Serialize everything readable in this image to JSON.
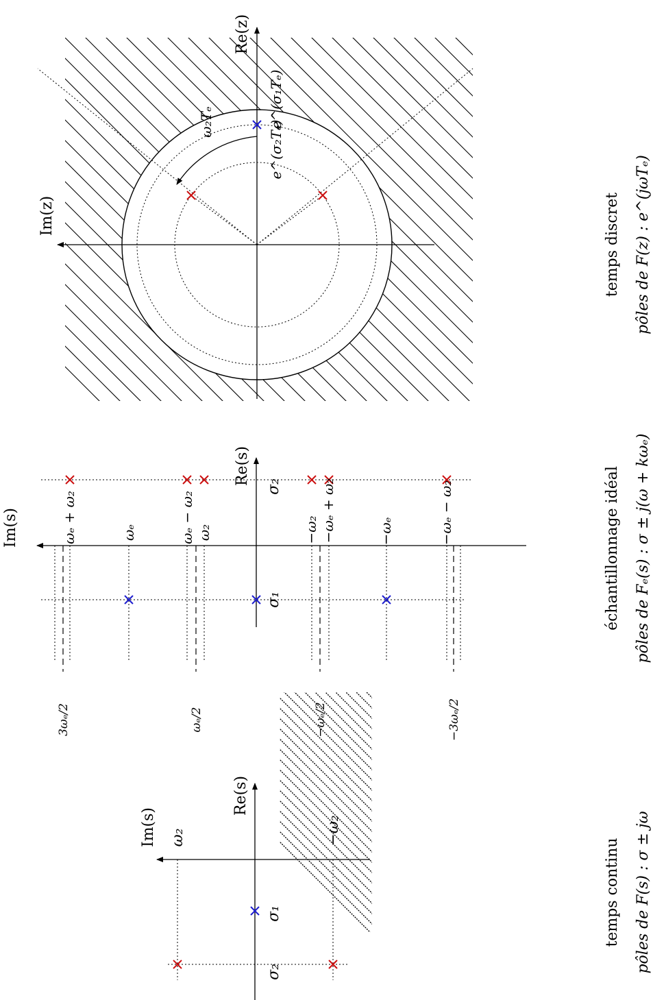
{
  "colors": {
    "stable_pole": "#1f1fd0",
    "unstable_pole": "#cc1111",
    "ink": "#000000"
  },
  "continuous": {
    "axis_im": "Im(s)",
    "axis_re": "Re(s)",
    "label_sigma1": "σ₁",
    "label_sigma2": "σ₂",
    "label_w2": "ω₂",
    "label_mw2": "−ω₂",
    "caption_line1": "temps continu",
    "caption_line2": "pôles de F(s) : σ ± jω"
  },
  "sampled": {
    "axis_im": "Im(s)",
    "axis_re": "Re(s)",
    "label_sigma1": "σ₁",
    "label_sigma2": "σ₂",
    "label_we_plus_w2": "ωₑ + ω₂",
    "label_we": "ωₑ",
    "label_we_minus_w2": "ωₑ − ω₂",
    "label_w2": "ω₂",
    "label_mw2": "−ω₂",
    "label_mwe_plus_w2": "−ωₑ + ω₂",
    "label_mwe": "−ωₑ",
    "label_mwe_minus_w2": "−ωₑ − ω₂",
    "label_3we_half": "3ωₑ/2",
    "label_we_half": "ωₑ/2",
    "label_mwe_half": "−ωₑ/2",
    "label_m3we_half": "−3ωₑ/2",
    "caption_line1": "échantillonnage idéal",
    "caption_line2": "pôles de Fₑ(s) : σ ± j(ω + kωₑ)"
  },
  "discrete": {
    "axis_im": "Im(z)",
    "axis_re": "Re(z)",
    "label_w2Te": "ω₂Tₑ",
    "label_exp_sigma2": "e^(σ₂Tₑ)",
    "label_exp_sigma1": "e^(σ₁Tₑ)",
    "caption_line1": "temps discret",
    "caption_line2": "pôles de F(z) : e^(jωTₑ)"
  }
}
